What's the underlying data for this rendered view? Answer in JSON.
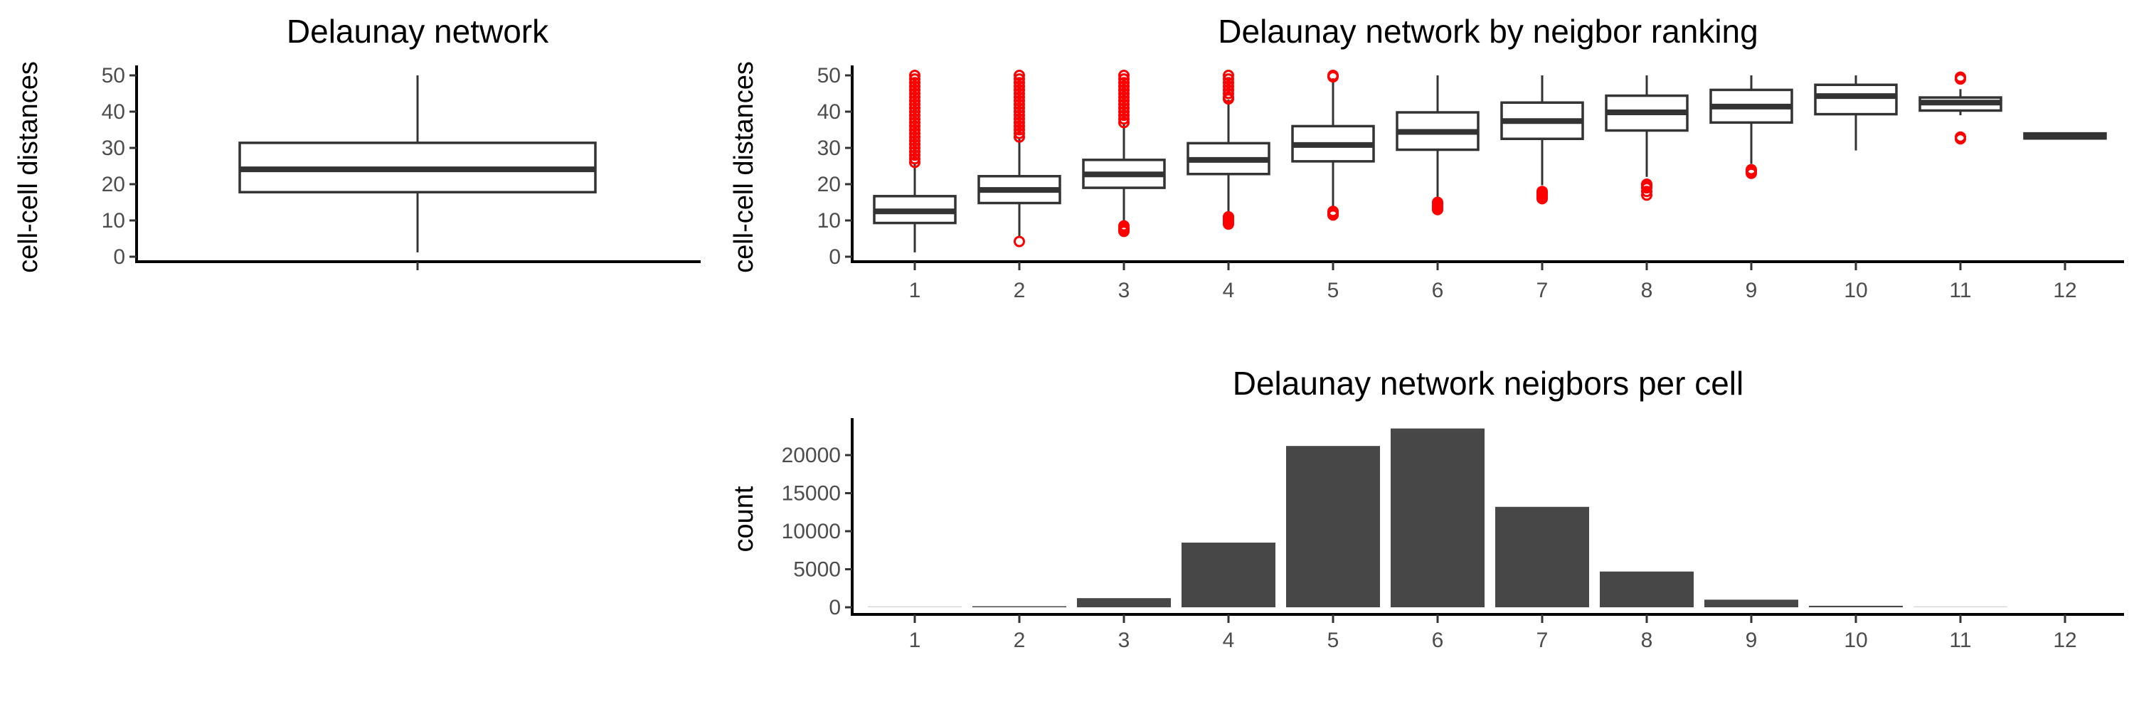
{
  "chart_data": [
    {
      "type": "box",
      "title": "Delaunay network",
      "xlabel": "",
      "ylabel": "cell-cell distances",
      "ylim": [
        0,
        50
      ],
      "yticks": [
        "0",
        "10",
        "20",
        "30",
        "40",
        "50"
      ],
      "boxes": [
        {
          "label": "",
          "low": 1.2,
          "q1": 17.8,
          "median": 24.1,
          "q3": 31.4,
          "high": 50,
          "outliers": []
        }
      ]
    },
    {
      "type": "box",
      "title": "Delaunay network by neigbor ranking",
      "xlabel": "",
      "ylabel": "cell-cell distances",
      "ylim": [
        0,
        50
      ],
      "yticks": [
        "0",
        "10",
        "20",
        "30",
        "40",
        "50"
      ],
      "outlier_color": "#ff0000",
      "boxes": [
        {
          "label": "1",
          "low": 1.2,
          "q1": 9.3,
          "median": 12.5,
          "q3": 16.7,
          "high": 25.6,
          "outliers": [
            26,
            27,
            28,
            29,
            30,
            31,
            32,
            33,
            34,
            35,
            36,
            37,
            38,
            39,
            40,
            41,
            42,
            43,
            44,
            45,
            46,
            47,
            48,
            49,
            50
          ]
        },
        {
          "label": "2",
          "low": 5.4,
          "q1": 14.8,
          "median": 18.4,
          "q3": 22.2,
          "high": 32.5,
          "outliers": [
            4.2,
            33,
            34,
            35,
            36,
            37,
            38,
            39,
            40,
            41,
            42,
            43,
            44,
            45,
            46,
            47,
            48,
            49,
            50
          ]
        },
        {
          "label": "3",
          "low": 9.3,
          "q1": 19.0,
          "median": 22.7,
          "q3": 26.7,
          "high": 36.7,
          "outliers": [
            7,
            7.5,
            8,
            8.5,
            37,
            38,
            39,
            40,
            41,
            42,
            43,
            44,
            45,
            46,
            47,
            48,
            49,
            50
          ]
        },
        {
          "label": "4",
          "low": 11.9,
          "q1": 22.8,
          "median": 26.7,
          "q3": 31.3,
          "high": 43.3,
          "outliers": [
            9,
            9.5,
            10,
            10.5,
            11,
            43.5,
            44,
            45,
            46,
            47,
            48,
            49,
            50
          ]
        },
        {
          "label": "5",
          "low": 13.9,
          "q1": 26.3,
          "median": 30.8,
          "q3": 36.0,
          "high": 49.2,
          "outliers": [
            11.5,
            12,
            12.5,
            49.6,
            50
          ]
        },
        {
          "label": "6",
          "low": 16.5,
          "q1": 29.5,
          "median": 34.4,
          "q3": 39.8,
          "high": 50,
          "outliers": [
            13,
            13.5,
            14,
            14.5,
            15
          ]
        },
        {
          "label": "7",
          "low": 19.7,
          "q1": 32.5,
          "median": 37.4,
          "q3": 42.5,
          "high": 50,
          "outliers": [
            16,
            16.5,
            17,
            17.5,
            18
          ]
        },
        {
          "label": "8",
          "low": 22.0,
          "q1": 34.8,
          "median": 39.8,
          "q3": 44.4,
          "high": 50,
          "outliers": [
            17,
            18,
            19,
            19.5,
            20
          ]
        },
        {
          "label": "9",
          "low": 25.6,
          "q1": 37.0,
          "median": 41.4,
          "q3": 46.0,
          "high": 50,
          "outliers": [
            23,
            23.5,
            24
          ]
        },
        {
          "label": "10",
          "low": 29.3,
          "q1": 39.3,
          "median": 44.3,
          "q3": 47.4,
          "high": 50,
          "outliers": []
        },
        {
          "label": "11",
          "low": 39.0,
          "q1": 40.3,
          "median": 42.5,
          "q3": 43.9,
          "high": 46.2,
          "outliers": [
            32.5,
            33,
            49,
            49.5
          ]
        },
        {
          "label": "12",
          "low": 32.6,
          "q1": 32.6,
          "median": 33.3,
          "q3": 34.0,
          "high": 34.0,
          "outliers": []
        }
      ]
    },
    {
      "type": "bar",
      "title": "Delaunay network neigbors per cell",
      "xlabel": "",
      "ylabel": "count",
      "ylim": [
        0,
        24500
      ],
      "yticks": [
        "0",
        "5000",
        "10000",
        "15000",
        "20000"
      ],
      "bar_color": "#474747",
      "categories": [
        "1",
        "2",
        "3",
        "4",
        "5",
        "6",
        "7",
        "8",
        "9",
        "10",
        "11",
        "12"
      ],
      "values": [
        20,
        100,
        1200,
        8500,
        21200,
        23500,
        13200,
        4700,
        1000,
        200,
        30,
        0
      ]
    }
  ]
}
